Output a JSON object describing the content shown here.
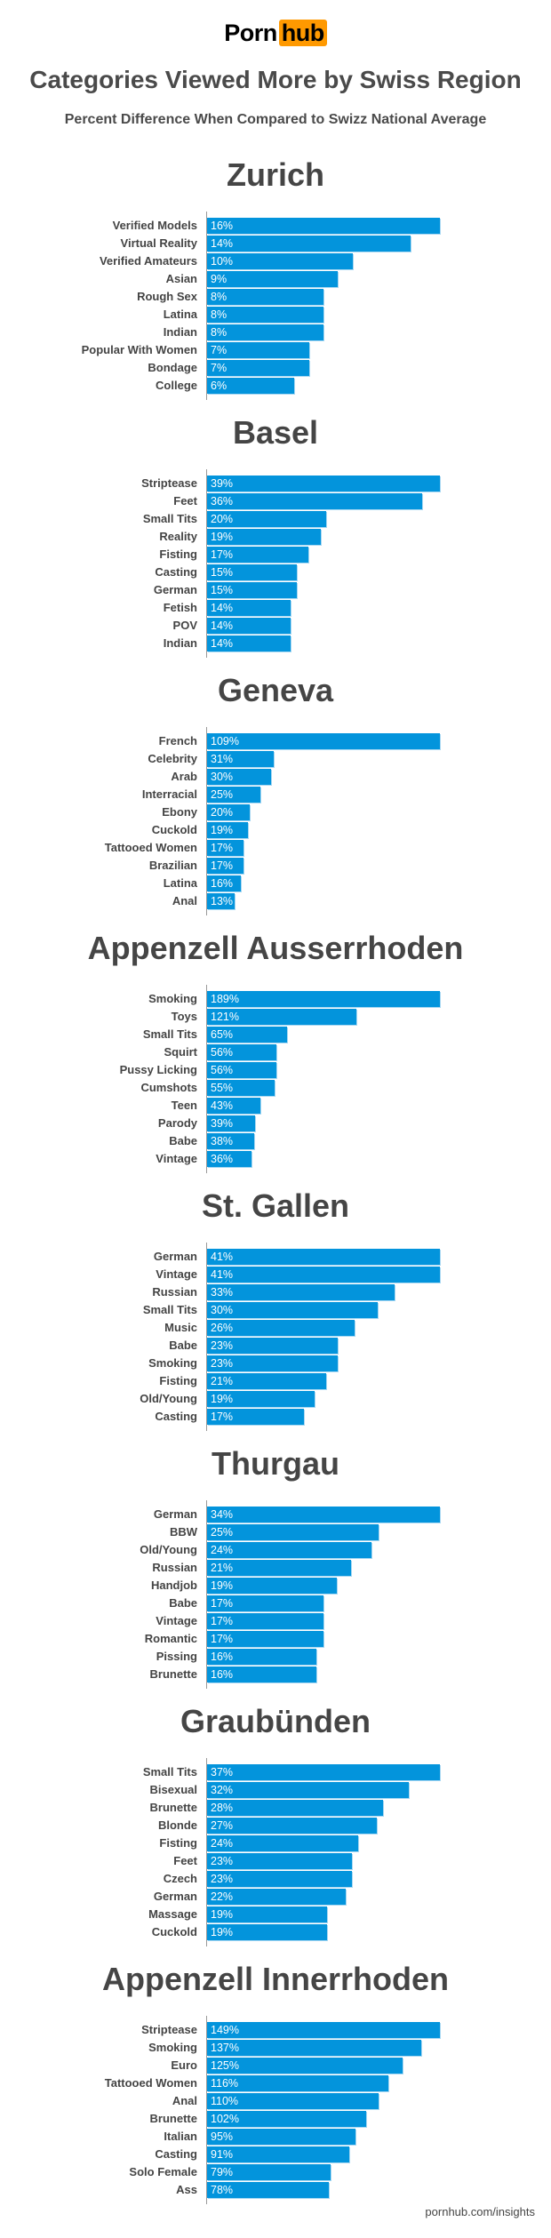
{
  "logo": {
    "part1": "Porn",
    "part2": "hub"
  },
  "header": {
    "title": "Categories Viewed More by Swiss Region",
    "subtitle": "Percent Difference When Compared to Swizz National Average"
  },
  "footer": "pornhub.com/insights",
  "colors": {
    "bar": "#0394dc",
    "logo_accent": "#ff9900",
    "text": "#444444"
  },
  "chart_data": [
    {
      "type": "bar",
      "orientation": "horizontal",
      "title": "Zurich",
      "categories": [
        "Verified Models",
        "Virtual Reality",
        "Verified Amateurs",
        "Asian",
        "Rough Sex",
        "Latina",
        "Indian",
        "Popular With Women",
        "Bondage",
        "College"
      ],
      "values": [
        16,
        14,
        10,
        9,
        8,
        8,
        8,
        7,
        7,
        6
      ],
      "labels": [
        "16%",
        "14%",
        "10%",
        "9%",
        "8%",
        "8%",
        "8%",
        "7%",
        "7%",
        "6%"
      ]
    },
    {
      "type": "bar",
      "orientation": "horizontal",
      "title": "Basel",
      "categories": [
        "Striptease",
        "Feet",
        "Small Tits",
        "Reality",
        "Fisting",
        "Casting",
        "German",
        "Fetish",
        "POV",
        "Indian"
      ],
      "values": [
        39,
        36,
        20,
        19,
        17,
        15,
        15,
        14,
        14,
        14
      ],
      "labels": [
        "39%",
        "36%",
        "20%",
        "19%",
        "17%",
        "15%",
        "15%",
        "14%",
        "14%",
        "14%"
      ]
    },
    {
      "type": "bar",
      "orientation": "horizontal",
      "title": "Geneva",
      "categories": [
        "French",
        "Celebrity",
        "Arab",
        "Interracial",
        "Ebony",
        "Cuckold",
        "Tattooed Women",
        "Brazilian",
        "Latina",
        "Anal"
      ],
      "values": [
        109,
        31,
        30,
        25,
        20,
        19,
        17,
        17,
        16,
        13
      ],
      "labels": [
        "109%",
        "31%",
        "30%",
        "25%",
        "20%",
        "19%",
        "17%",
        "17%",
        "16%",
        "13%"
      ]
    },
    {
      "type": "bar",
      "orientation": "horizontal",
      "title": "Appenzell Ausserrhoden",
      "categories": [
        "Smoking",
        "Toys",
        "Small Tits",
        "Squirt",
        "Pussy Licking",
        "Cumshots",
        "Teen",
        "Parody",
        "Babe",
        "Vintage"
      ],
      "values": [
        189,
        121,
        65,
        56,
        56,
        55,
        43,
        39,
        38,
        36
      ],
      "labels": [
        "189%",
        "121%",
        "65%",
        "56%",
        "56%",
        "55%",
        "43%",
        "39%",
        "38%",
        "36%"
      ]
    },
    {
      "type": "bar",
      "orientation": "horizontal",
      "title": "St. Gallen",
      "categories": [
        "German",
        "Vintage",
        "Russian",
        "Small Tits",
        "Music",
        "Babe",
        "Smoking",
        "Fisting",
        "Old/Young",
        "Casting"
      ],
      "values": [
        41,
        41,
        33,
        30,
        26,
        23,
        23,
        21,
        19,
        17
      ],
      "labels": [
        "41%",
        "41%",
        "33%",
        "30%",
        "26%",
        "23%",
        "23%",
        "21%",
        "19%",
        "17%"
      ]
    },
    {
      "type": "bar",
      "orientation": "horizontal",
      "title": "Thurgau",
      "categories": [
        "German",
        "BBW",
        "Old/Young",
        "Russian",
        "Handjob",
        "Babe",
        "Vintage",
        "Romantic",
        "Pissing",
        "Brunette"
      ],
      "values": [
        34,
        25,
        24,
        21,
        19,
        17,
        17,
        17,
        16,
        16
      ],
      "labels": [
        "34%",
        "25%",
        "24%",
        "21%",
        "19%",
        "17%",
        "17%",
        "17%",
        "16%",
        "16%"
      ]
    },
    {
      "type": "bar",
      "orientation": "horizontal",
      "title": "Graubünden",
      "categories": [
        "Small Tits",
        "Bisexual",
        "Brunette",
        "Blonde",
        "Fisting",
        "Feet",
        "Czech",
        "German",
        "Massage",
        "Cuckold"
      ],
      "values": [
        37,
        32,
        28,
        27,
        24,
        23,
        23,
        22,
        19,
        19
      ],
      "labels": [
        "37%",
        "32%",
        "28%",
        "27%",
        "24%",
        "23%",
        "23%",
        "22%",
        "19%",
        "19%"
      ]
    },
    {
      "type": "bar",
      "orientation": "horizontal",
      "title": "Appenzell Innerrhoden",
      "categories": [
        "Striptease",
        "Smoking",
        "Euro",
        "Tattooed Women",
        "Anal",
        "Brunette",
        "Italian",
        "Casting",
        "Solo Female",
        "Ass"
      ],
      "values": [
        149,
        137,
        125,
        116,
        110,
        102,
        95,
        91,
        79,
        78
      ],
      "labels": [
        "149%",
        "137%",
        "125%",
        "116%",
        "110%",
        "102%",
        "95%",
        "91%",
        "79%",
        "78%"
      ]
    }
  ]
}
